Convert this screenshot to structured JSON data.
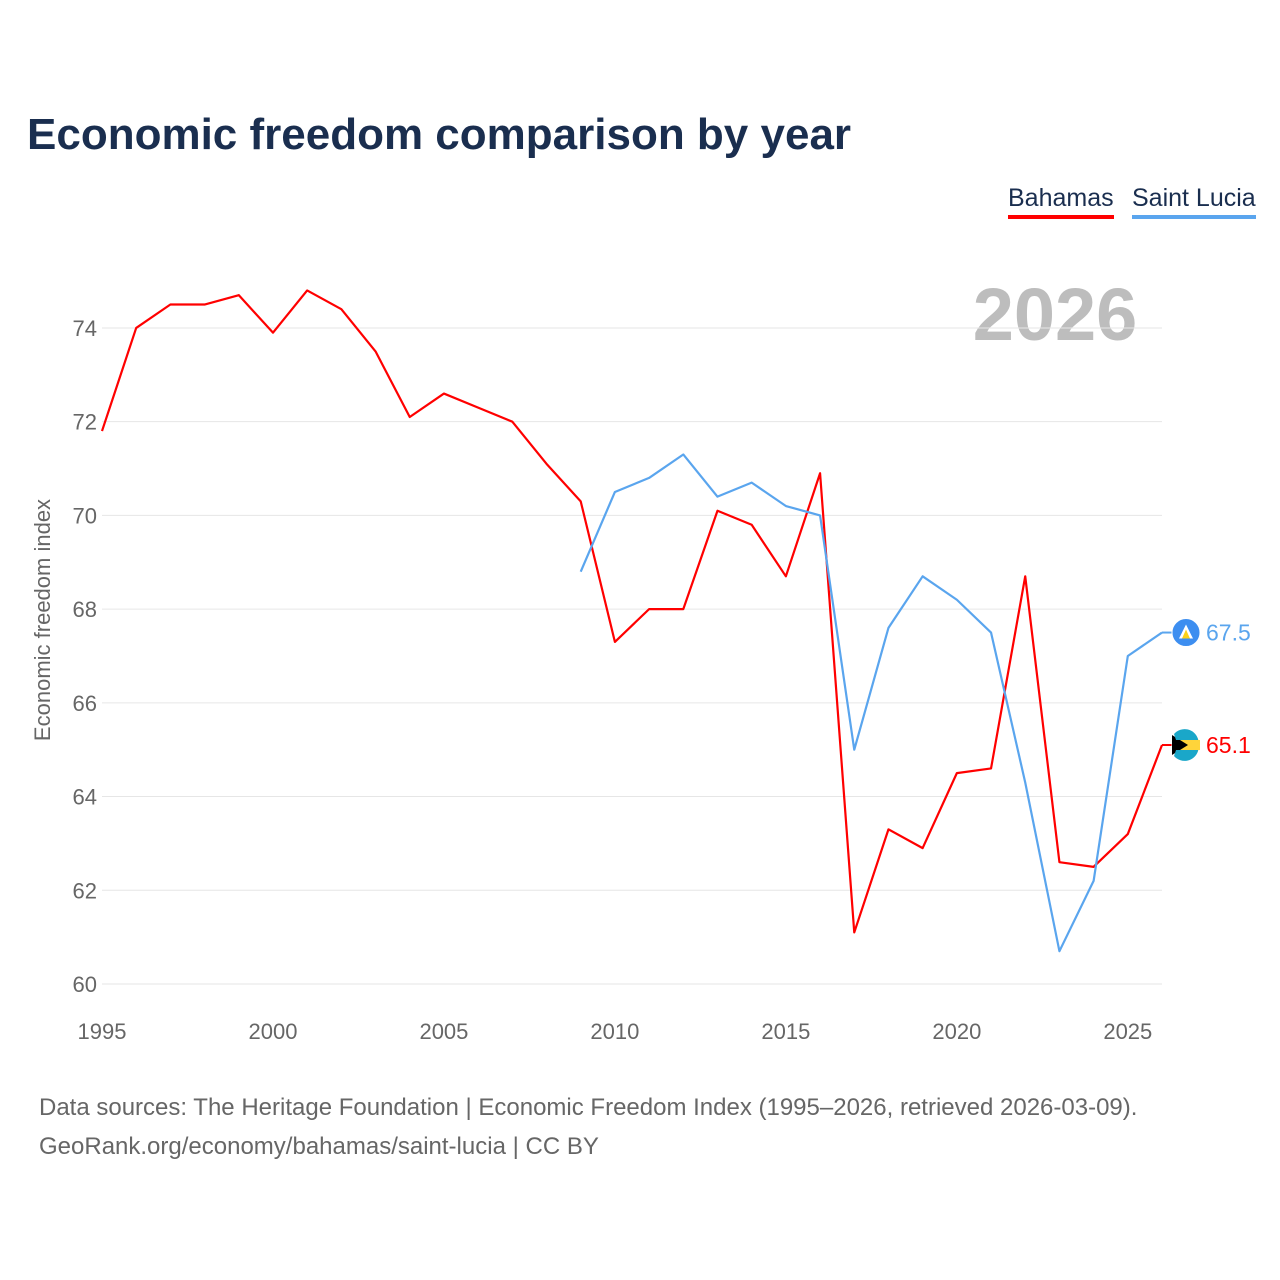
{
  "chart_data": {
    "type": "line",
    "title": "Economic freedom comparison by year",
    "ylabel": "Economic freedom index",
    "xlabel": "",
    "watermark_year": "2026",
    "xlim": [
      1995,
      2026
    ],
    "ylim": [
      60,
      75.5
    ],
    "x_ticks": [
      1995,
      2000,
      2005,
      2010,
      2015,
      2020,
      2025
    ],
    "y_ticks": [
      60,
      62,
      64,
      66,
      68,
      70,
      72,
      74
    ],
    "grid": true,
    "legend_position": "top-right",
    "series": [
      {
        "name": "Bahamas",
        "color": "#ff0000",
        "end_label": "65.1",
        "x": [
          1995,
          1996,
          1997,
          1998,
          1999,
          2000,
          2001,
          2002,
          2003,
          2004,
          2005,
          2006,
          2007,
          2008,
          2009,
          2010,
          2011,
          2012,
          2013,
          2014,
          2015,
          2016,
          2017,
          2018,
          2019,
          2020,
          2021,
          2022,
          2023,
          2024,
          2025,
          2026
        ],
        "values": [
          71.8,
          74.0,
          74.5,
          74.5,
          74.7,
          73.9,
          74.8,
          74.4,
          73.5,
          72.1,
          72.6,
          72.3,
          72.0,
          71.1,
          70.3,
          67.3,
          68.0,
          68.0,
          70.1,
          69.8,
          68.7,
          70.9,
          61.1,
          63.3,
          62.9,
          64.5,
          64.6,
          68.7,
          62.6,
          62.5,
          63.2,
          65.1
        ]
      },
      {
        "name": "Saint Lucia",
        "color": "#5aa5ee",
        "end_label": "67.5",
        "x": [
          2009,
          2010,
          2011,
          2012,
          2013,
          2014,
          2015,
          2016,
          2017,
          2018,
          2019,
          2020,
          2021,
          2022,
          2023,
          2024,
          2025,
          2026
        ],
        "values": [
          68.8,
          70.5,
          70.8,
          71.3,
          70.4,
          70.7,
          70.2,
          70.0,
          65.0,
          67.6,
          68.7,
          68.2,
          67.5,
          64.3,
          60.7,
          62.2,
          67.0,
          67.5
        ]
      }
    ]
  },
  "footer": {
    "line1": "Data sources: The Heritage Foundation | Economic Freedom Index (1995–2026, retrieved 2026-03-09).",
    "line2": "GeoRank.org/economy/bahamas/saint-lucia | CC BY"
  }
}
